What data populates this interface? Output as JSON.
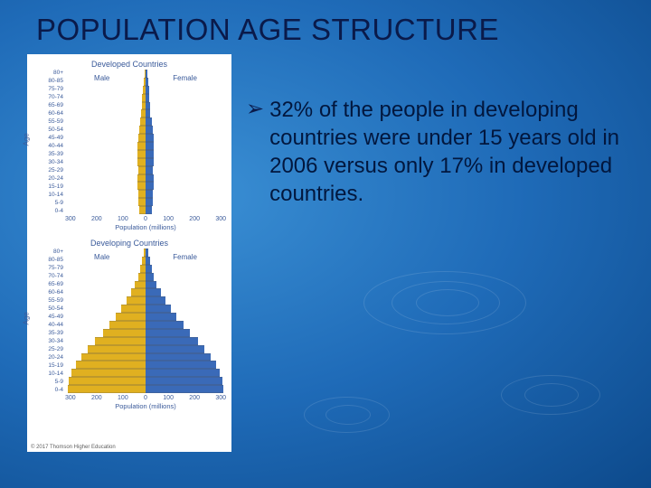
{
  "slide": {
    "title": "POPULATION AGE STRUCTURE",
    "title_color": "#0a1a4a",
    "title_fontsize": 33,
    "background_gradient": [
      "#3a8fd4",
      "#1f6bb8",
      "#0d4a8c"
    ]
  },
  "bullet": {
    "marker": "➢",
    "text": "32% of the people in developing countries were under 15 years old in 2006 versus only 17% in developed countries.",
    "text_color": "#02173e",
    "fontsize": 24
  },
  "figure": {
    "age_groups": [
      "80+",
      "80-85",
      "75-79",
      "70-74",
      "65-69",
      "60-64",
      "55-59",
      "50-54",
      "45-49",
      "40-44",
      "35-39",
      "30-34",
      "25-29",
      "20-24",
      "15-19",
      "10-14",
      "5-9",
      "0-4"
    ],
    "x_ticks": [
      "300",
      "200",
      "100",
      "0",
      "100",
      "200",
      "300"
    ],
    "x_label": "Population (millions)",
    "age_axis_label": "Age",
    "male_color": "#e0b020",
    "female_color": "#3a6ab8",
    "male_label": "Male",
    "female_label": "Female",
    "copyright": "© 2017 Thomson Higher Education",
    "charts": [
      {
        "title": "Developed Countries",
        "max_x": 300,
        "male": [
          4,
          8,
          10,
          12,
          14,
          17,
          20,
          24,
          28,
          30,
          30,
          30,
          28,
          30,
          30,
          28,
          26,
          24
        ],
        "female": [
          6,
          10,
          12,
          14,
          16,
          18,
          22,
          26,
          30,
          32,
          32,
          30,
          28,
          30,
          30,
          28,
          26,
          24
        ]
      },
      {
        "title": "Developing Countries",
        "max_x": 300,
        "male": [
          8,
          14,
          20,
          28,
          40,
          55,
          70,
          90,
          110,
          135,
          160,
          190,
          215,
          240,
          260,
          275,
          285,
          290
        ],
        "female": [
          10,
          16,
          22,
          30,
          42,
          58,
          74,
          95,
          115,
          140,
          165,
          195,
          218,
          242,
          262,
          277,
          286,
          290
        ]
      }
    ]
  }
}
